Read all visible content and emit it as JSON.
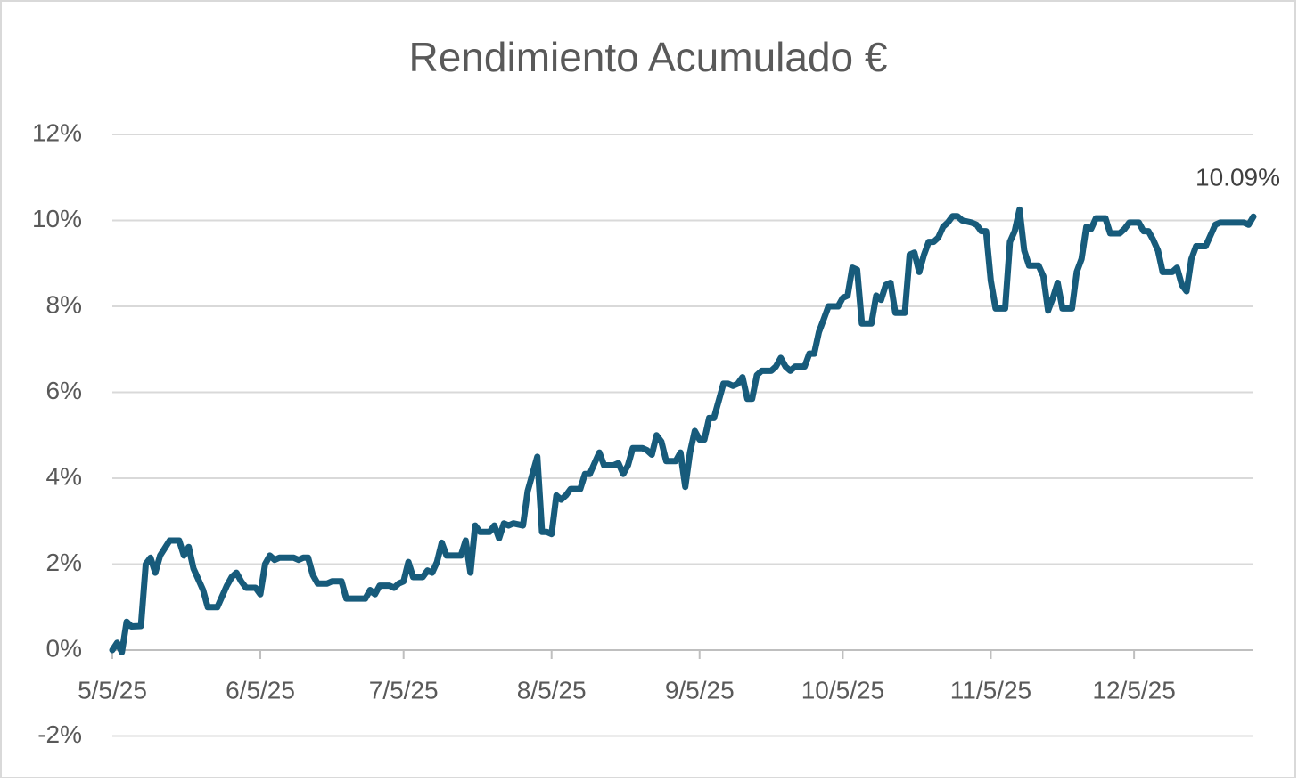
{
  "chart_data": {
    "type": "line",
    "title": "Rendimiento Acumulado €",
    "series": [
      {
        "name": "Rendimiento Acumulado €",
        "color": "#175b7b",
        "x": [
          "2025-05-05",
          "2025-05-06",
          "2025-05-07",
          "2025-05-08",
          "2025-05-09",
          "2025-05-11",
          "2025-05-12",
          "2025-05-13",
          "2025-05-14",
          "2025-05-15",
          "2025-05-17",
          "2025-05-19",
          "2025-05-20",
          "2025-05-21",
          "2025-05-22",
          "2025-05-24",
          "2025-05-25",
          "2025-05-27",
          "2025-05-29",
          "2025-05-30",
          "2025-05-31",
          "2025-06-01",
          "2025-06-02",
          "2025-06-04",
          "2025-06-05",
          "2025-06-06",
          "2025-06-07",
          "2025-06-08",
          "2025-06-09",
          "2025-06-12",
          "2025-06-13",
          "2025-06-14",
          "2025-06-15",
          "2025-06-16",
          "2025-06-17",
          "2025-06-19",
          "2025-06-20",
          "2025-06-22",
          "2025-06-23",
          "2025-06-24",
          "2025-06-26",
          "2025-06-27",
          "2025-06-28",
          "2025-06-29",
          "2025-06-30",
          "2025-07-02",
          "2025-07-03",
          "2025-07-04",
          "2025-07-05",
          "2025-07-06",
          "2025-07-07",
          "2025-07-09",
          "2025-07-10",
          "2025-07-11",
          "2025-07-12",
          "2025-07-13",
          "2025-07-14",
          "2025-07-16",
          "2025-07-17",
          "2025-07-18",
          "2025-07-19",
          "2025-07-20",
          "2025-07-21",
          "2025-07-23",
          "2025-07-24",
          "2025-07-25",
          "2025-07-26",
          "2025-07-27",
          "2025-07-28",
          "2025-07-30",
          "2025-07-31",
          "2025-08-01",
          "2025-08-02",
          "2025-08-03",
          "2025-08-04",
          "2025-08-05",
          "2025-08-06",
          "2025-08-07",
          "2025-08-08",
          "2025-08-09",
          "2025-08-11",
          "2025-08-12",
          "2025-08-13",
          "2025-08-14",
          "2025-08-15",
          "2025-08-16",
          "2025-08-18",
          "2025-08-19",
          "2025-08-20",
          "2025-08-21",
          "2025-08-22",
          "2025-08-24",
          "2025-08-25",
          "2025-08-26",
          "2025-08-27",
          "2025-08-28",
          "2025-08-29",
          "2025-08-31",
          "2025-09-01",
          "2025-09-02",
          "2025-09-03",
          "2025-09-04",
          "2025-09-05",
          "2025-09-06",
          "2025-09-07",
          "2025-09-08",
          "2025-09-09",
          "2025-09-10",
          "2025-09-11",
          "2025-09-12",
          "2025-09-13",
          "2025-09-14",
          "2025-09-15",
          "2025-09-16",
          "2025-09-17",
          "2025-09-18",
          "2025-09-20",
          "2025-09-21",
          "2025-09-22",
          "2025-09-23",
          "2025-09-24",
          "2025-09-25",
          "2025-09-27",
          "2025-09-28",
          "2025-09-29",
          "2025-09-30",
          "2025-10-01",
          "2025-10-02",
          "2025-10-04",
          "2025-10-05",
          "2025-10-06",
          "2025-10-07",
          "2025-10-08",
          "2025-10-09",
          "2025-10-11",
          "2025-10-12",
          "2025-10-13",
          "2025-10-14",
          "2025-10-15",
          "2025-10-16",
          "2025-10-18",
          "2025-10-19",
          "2025-10-20",
          "2025-10-21",
          "2025-10-22",
          "2025-10-23",
          "2025-10-24",
          "2025-10-25",
          "2025-10-26",
          "2025-10-27",
          "2025-10-28",
          "2025-10-29",
          "2025-10-30",
          "2025-11-01",
          "2025-11-02",
          "2025-11-03",
          "2025-11-04",
          "2025-11-05",
          "2025-11-06",
          "2025-11-08",
          "2025-11-09",
          "2025-11-10",
          "2025-11-11",
          "2025-11-12",
          "2025-11-13",
          "2025-11-15",
          "2025-11-16",
          "2025-11-17",
          "2025-11-18",
          "2025-11-19",
          "2025-11-20",
          "2025-11-22",
          "2025-11-23",
          "2025-11-24",
          "2025-11-25",
          "2025-11-26",
          "2025-11-27",
          "2025-11-29",
          "2025-11-30",
          "2025-12-02",
          "2025-12-03",
          "2025-12-04",
          "2025-12-06",
          "2025-12-07",
          "2025-12-08",
          "2025-12-09",
          "2025-12-10",
          "2025-12-11",
          "2025-12-13",
          "2025-12-14",
          "2025-12-15",
          "2025-12-16",
          "2025-12-17",
          "2025-12-18",
          "2025-12-20",
          "2025-12-21",
          "2025-12-22",
          "2025-12-23",
          "2025-12-26",
          "2025-12-28",
          "2025-12-29",
          "2025-12-30"
        ],
        "values": [
          0,
          0.17,
          -0.05,
          0.66,
          0.55,
          0.56,
          2.0,
          2.15,
          1.8,
          2.2,
          2.55,
          2.55,
          2.2,
          2.4,
          1.9,
          1.4,
          1.0,
          1.0,
          1.5,
          1.7,
          1.8,
          1.6,
          1.45,
          1.45,
          1.3,
          2.0,
          2.2,
          2.1,
          2.15,
          2.15,
          2.1,
          2.15,
          2.15,
          1.75,
          1.55,
          1.55,
          1.6,
          1.6,
          1.2,
          1.2,
          1.2,
          1.2,
          1.4,
          1.3,
          1.5,
          1.5,
          1.45,
          1.55,
          1.6,
          2.05,
          1.7,
          1.7,
          1.85,
          1.8,
          2.05,
          2.5,
          2.2,
          2.2,
          2.2,
          2.55,
          1.8,
          2.9,
          2.75,
          2.75,
          2.9,
          2.6,
          2.95,
          2.9,
          2.95,
          2.9,
          3.7,
          4.1,
          4.5,
          2.75,
          2.75,
          2.7,
          3.6,
          3.5,
          3.6,
          3.75,
          3.75,
          4.1,
          4.1,
          4.35,
          4.6,
          4.3,
          4.3,
          4.35,
          4.1,
          4.3,
          4.7,
          4.7,
          4.65,
          4.55,
          5.0,
          4.85,
          4.4,
          4.4,
          4.6,
          3.8,
          4.6,
          5.1,
          4.9,
          4.9,
          5.4,
          5.4,
          5.8,
          6.2,
          6.2,
          6.15,
          6.2,
          6.35,
          5.85,
          5.85,
          6.4,
          6.5,
          6.5,
          6.6,
          6.8,
          6.6,
          6.5,
          6.6,
          6.6,
          6.9,
          6.9,
          7.4,
          7.7,
          8.0,
          8.0,
          8.2,
          8.25,
          8.9,
          8.85,
          7.6,
          7.6,
          8.25,
          8.15,
          8.5,
          8.55,
          7.85,
          7.85,
          9.2,
          9.25,
          8.8,
          9.2,
          9.5,
          9.5,
          9.6,
          9.85,
          9.95,
          10.1,
          10.1,
          10.0,
          9.95,
          9.9,
          9.75,
          9.75,
          8.6,
          7.95,
          7.95,
          9.5,
          9.75,
          10.25,
          9.3,
          8.95,
          8.95,
          8.7,
          7.9,
          8.2,
          8.55,
          7.95,
          7.95,
          8.8,
          9.1,
          9.85,
          9.8,
          10.05,
          10.05,
          9.7,
          9.7,
          9.8,
          9.95,
          9.95,
          9.75,
          9.75,
          9.55,
          9.3,
          8.8,
          8.8,
          8.9,
          8.5,
          8.35,
          9.1,
          9.4,
          9.4,
          9.65,
          9.9,
          9.95,
          9.95,
          9.95,
          9.9,
          10.09
        ]
      }
    ],
    "end_label": "10.09%",
    "xlim": [
      "2025-05-05",
      "2025-12-30"
    ],
    "xticks": [
      {
        "value": "2025-05-05",
        "label": "5/5/25"
      },
      {
        "value": "2025-06-05",
        "label": "6/5/25"
      },
      {
        "value": "2025-07-05",
        "label": "7/5/25"
      },
      {
        "value": "2025-08-05",
        "label": "8/5/25"
      },
      {
        "value": "2025-09-05",
        "label": "9/5/25"
      },
      {
        "value": "2025-10-05",
        "label": "10/5/25"
      },
      {
        "value": "2025-11-05",
        "label": "11/5/25"
      },
      {
        "value": "2025-12-05",
        "label": "12/5/25"
      }
    ],
    "ylim": [
      -2,
      12
    ],
    "yticks": [
      {
        "value": -2,
        "label": "-2%"
      },
      {
        "value": 0,
        "label": "0%"
      },
      {
        "value": 2,
        "label": "2%"
      },
      {
        "value": 4,
        "label": "4%"
      },
      {
        "value": 6,
        "label": "6%"
      },
      {
        "value": 8,
        "label": "8%"
      },
      {
        "value": 10,
        "label": "10%"
      },
      {
        "value": 12,
        "label": "12%"
      }
    ],
    "grid": true
  }
}
